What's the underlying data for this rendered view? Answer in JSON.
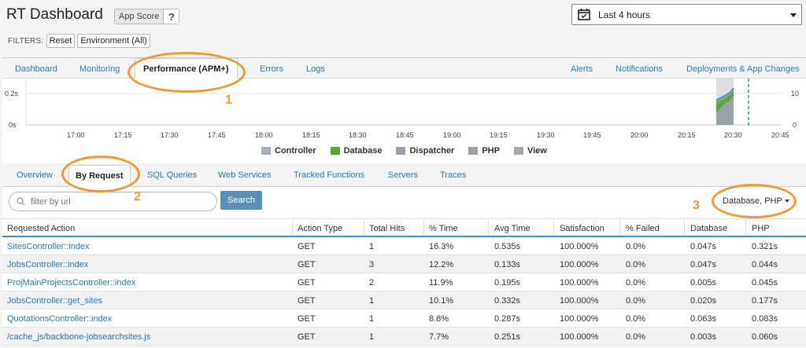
{
  "header": {
    "title": "RT Dashboard",
    "app_score_label": "App Score",
    "app_score_help": "?",
    "time_range": "Last 4 hours"
  },
  "filters": {
    "label": "FILTERS:",
    "reset": "Reset",
    "environment": "Environment (All)"
  },
  "top_nav": {
    "tabs": [
      "Dashboard",
      "Monitoring",
      "Performance (APM+)",
      "Errors",
      "Logs"
    ],
    "right": [
      "Alerts",
      "Notifications",
      "Deployments & App Changes"
    ]
  },
  "chart_data": {
    "type": "area",
    "left_axis_ticks": [
      "0.2s",
      "0s"
    ],
    "right_axis_ticks": [
      "10",
      "0"
    ],
    "x_ticks": [
      "17:00",
      "17:15",
      "17:30",
      "17:45",
      "18:00",
      "18:15",
      "18:30",
      "18:45",
      "19:00",
      "19:15",
      "19:30",
      "19:45",
      "20:00",
      "20:15",
      "20:30",
      "20:45"
    ],
    "series": [
      {
        "name": "Controller",
        "color": "#a9b0b7"
      },
      {
        "name": "Database",
        "color": "#5aa832"
      },
      {
        "name": "Dispatcher",
        "color": "#9aa3ab"
      },
      {
        "name": "PHP",
        "color": "#9ba3ab"
      },
      {
        "name": "View",
        "color": "#a4abb2"
      }
    ]
  },
  "sub_nav": {
    "tabs": [
      "Overview",
      "By Request",
      "SQL Queries",
      "Web Services",
      "Tracked Functions",
      "Servers",
      "Traces"
    ]
  },
  "controls": {
    "search_placeholder": "filter by url",
    "search_button": "Search",
    "columns_select": "Database, PHP"
  },
  "table": {
    "headers": [
      "Requested Action",
      "Action Type",
      "Total Hits",
      "% Time",
      "Avg Time",
      "Satisfaction",
      "% Failed",
      "Database",
      "PHP"
    ],
    "rows": [
      [
        "SitesController::index",
        "GET",
        "1",
        "16.3%",
        "0.535s",
        "100.000%",
        "0.0%",
        "0.047s",
        "0.321s"
      ],
      [
        "JobsController::index",
        "GET",
        "3",
        "12.2%",
        "0.133s",
        "100.000%",
        "0.0%",
        "0.047s",
        "0.044s"
      ],
      [
        "ProjMainProjectsController::index",
        "GET",
        "2",
        "11.9%",
        "0.195s",
        "100.000%",
        "0.0%",
        "0.005s",
        "0.045s"
      ],
      [
        "JobsController::get_sites",
        "GET",
        "1",
        "10.1%",
        "0.332s",
        "100.000%",
        "0.0%",
        "0.020s",
        "0.177s"
      ],
      [
        "QuotationsController::index",
        "GET",
        "1",
        "8.8%",
        "0.287s",
        "100.000%",
        "0.0%",
        "0.063s",
        "0.083s"
      ],
      [
        "/cache_js/backbone-jobsearchsites.js",
        "GET",
        "1",
        "7.7%",
        "0.251s",
        "100.000%",
        "0.0%",
        "0.003s",
        "0.060s"
      ]
    ]
  },
  "annotations": [
    "1",
    "2",
    "3"
  ]
}
